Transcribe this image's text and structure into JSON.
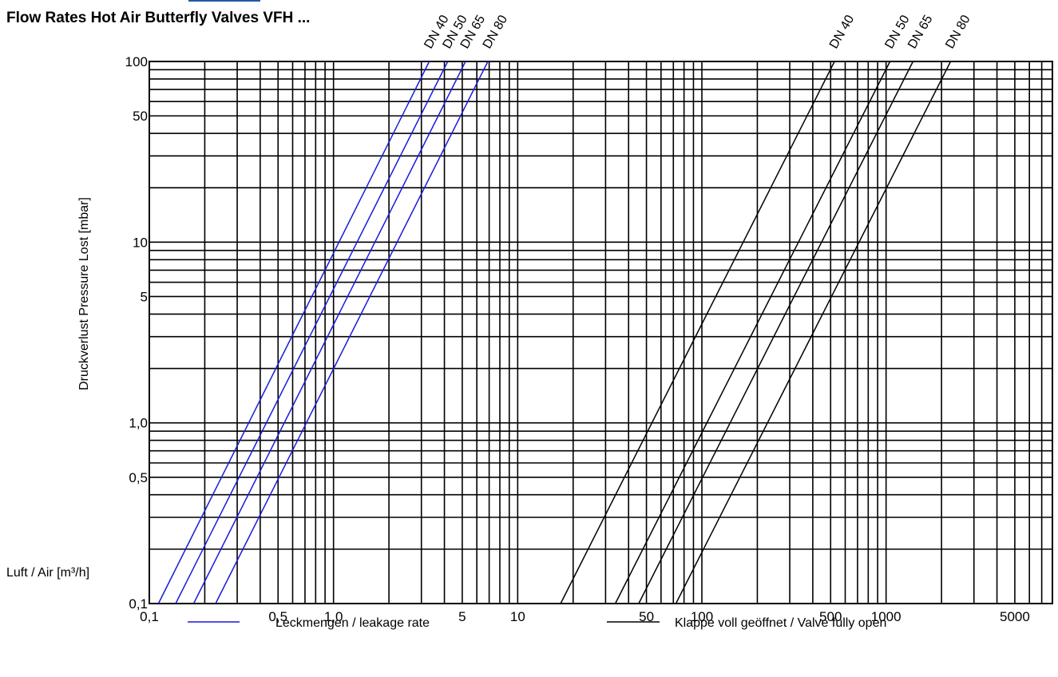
{
  "chart_data": {
    "type": "line",
    "title": "Flow Rates Hot Air Butterfly Valves VFH ...",
    "xlabel": "Luft / Air [m³/h]",
    "ylabel": "Druckverlust   Pressure Lost   [mbar]",
    "xscale": "log",
    "yscale": "log",
    "xlim": [
      0.1,
      8000
    ],
    "ylim": [
      0.1,
      100
    ],
    "grid": true,
    "xticks": [
      {
        "value": 0.1,
        "label": "0,1"
      },
      {
        "value": 0.5,
        "label": "0,5"
      },
      {
        "value": 1,
        "label": "1,0"
      },
      {
        "value": 5,
        "label": "5"
      },
      {
        "value": 10,
        "label": "10"
      },
      {
        "value": 50,
        "label": "50"
      },
      {
        "value": 100,
        "label": "100"
      },
      {
        "value": 500,
        "label": "500"
      },
      {
        "value": 1000,
        "label": "1000"
      },
      {
        "value": 5000,
        "label": "5000"
      }
    ],
    "yticks": [
      {
        "value": 0.1,
        "label": "0,1"
      },
      {
        "value": 0.5,
        "label": "0,5"
      },
      {
        "value": 1,
        "label": "1,0"
      },
      {
        "value": 5,
        "label": "5"
      },
      {
        "value": 10,
        "label": "10"
      },
      {
        "value": 50,
        "label": "50"
      },
      {
        "value": 100,
        "label": "100"
      }
    ],
    "legend": {
      "placement": "bottom",
      "entries": [
        {
          "label": "Leckmengen / leakage rate",
          "color": "#1a1adb"
        },
        {
          "label": "Klappe voll geöffnet / Valve fully open",
          "color": "#000000"
        }
      ]
    },
    "series": [
      {
        "group": "leakage",
        "label": "DN 40",
        "color": "#1a1adb",
        "x": [
          0.112,
          3.31
        ],
        "y": [
          0.1,
          100
        ]
      },
      {
        "group": "leakage",
        "label": "DN 50",
        "color": "#1a1adb",
        "x": [
          0.139,
          4.17
        ],
        "y": [
          0.1,
          100
        ]
      },
      {
        "group": "leakage",
        "label": "DN 65",
        "color": "#1a1adb",
        "x": [
          0.174,
          5.21
        ],
        "y": [
          0.1,
          100
        ]
      },
      {
        "group": "leakage",
        "label": "DN 80",
        "color": "#1a1adb",
        "x": [
          0.229,
          6.89
        ],
        "y": [
          0.1,
          100
        ]
      },
      {
        "group": "open",
        "label": "DN 40",
        "color": "#000000",
        "x": [
          17.1,
          525
        ],
        "y": [
          0.1,
          100
        ]
      },
      {
        "group": "open",
        "label": "DN 50",
        "color": "#000000",
        "x": [
          33.9,
          1050
        ],
        "y": [
          0.1,
          100
        ]
      },
      {
        "group": "open",
        "label": "DN 65",
        "color": "#000000",
        "x": [
          45.4,
          1400
        ],
        "y": [
          0.1,
          100
        ]
      },
      {
        "group": "open",
        "label": "DN 80",
        "color": "#000000",
        "x": [
          72.3,
          2240
        ],
        "y": [
          0.1,
          100
        ]
      }
    ]
  }
}
